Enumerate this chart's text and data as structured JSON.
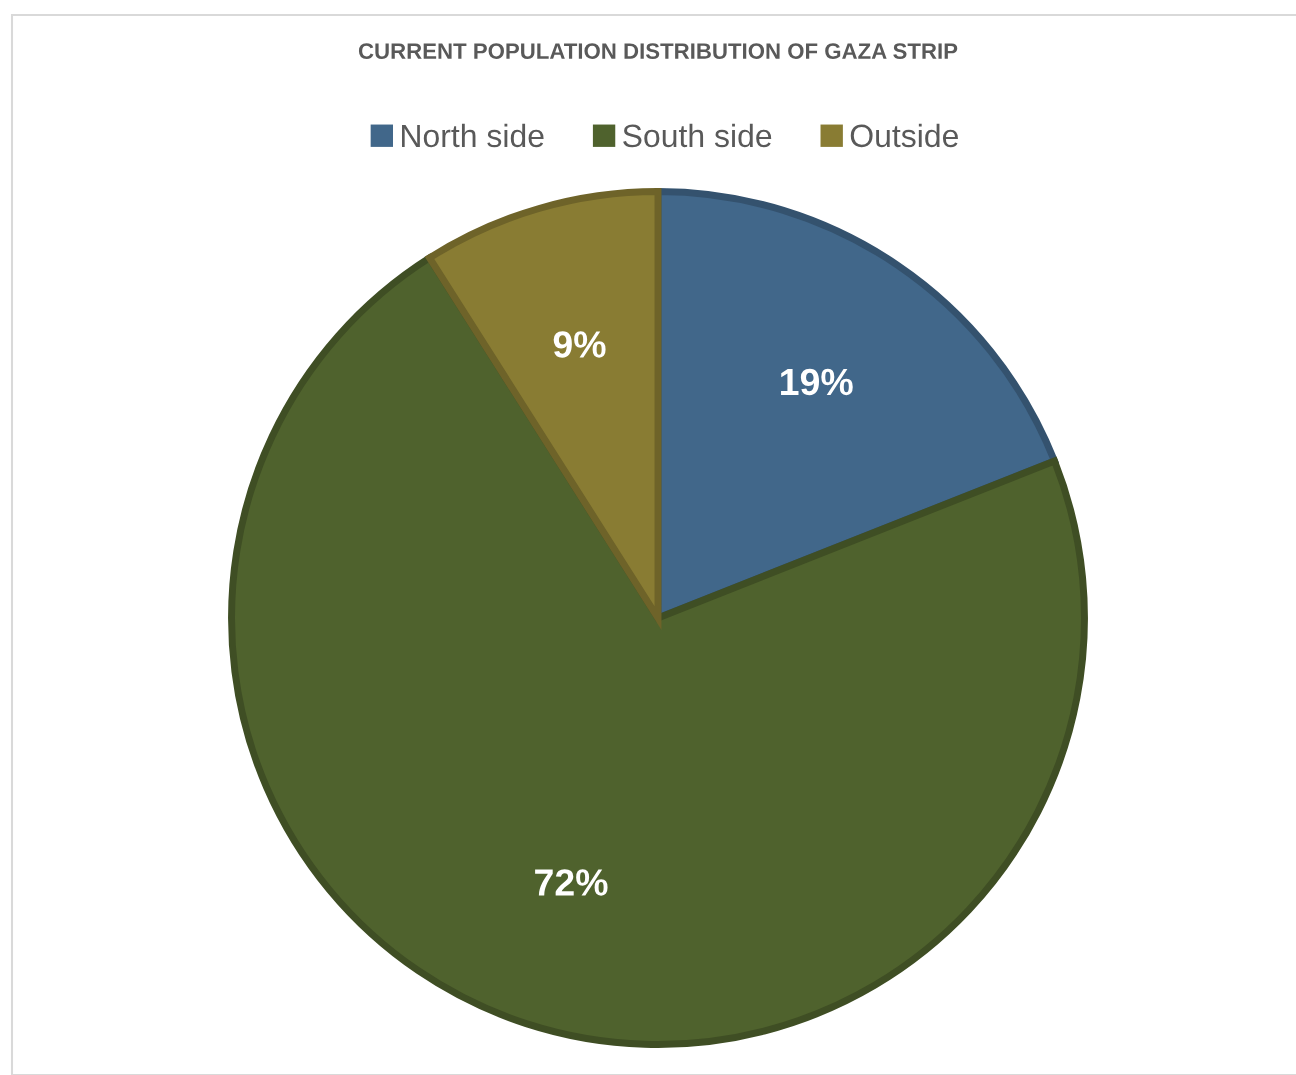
{
  "chart_data": {
    "type": "pie",
    "title": "CURRENT POPULATION DISTRIBUTION OF GAZA STRIP",
    "categories": [
      "North side",
      "South side",
      "Outside"
    ],
    "values": [
      19,
      72,
      9
    ],
    "colors": [
      "#41678a",
      "#4f622d",
      "#897c33"
    ],
    "value_labels": [
      "19%",
      "72%",
      "9%"
    ],
    "legend": "top"
  }
}
